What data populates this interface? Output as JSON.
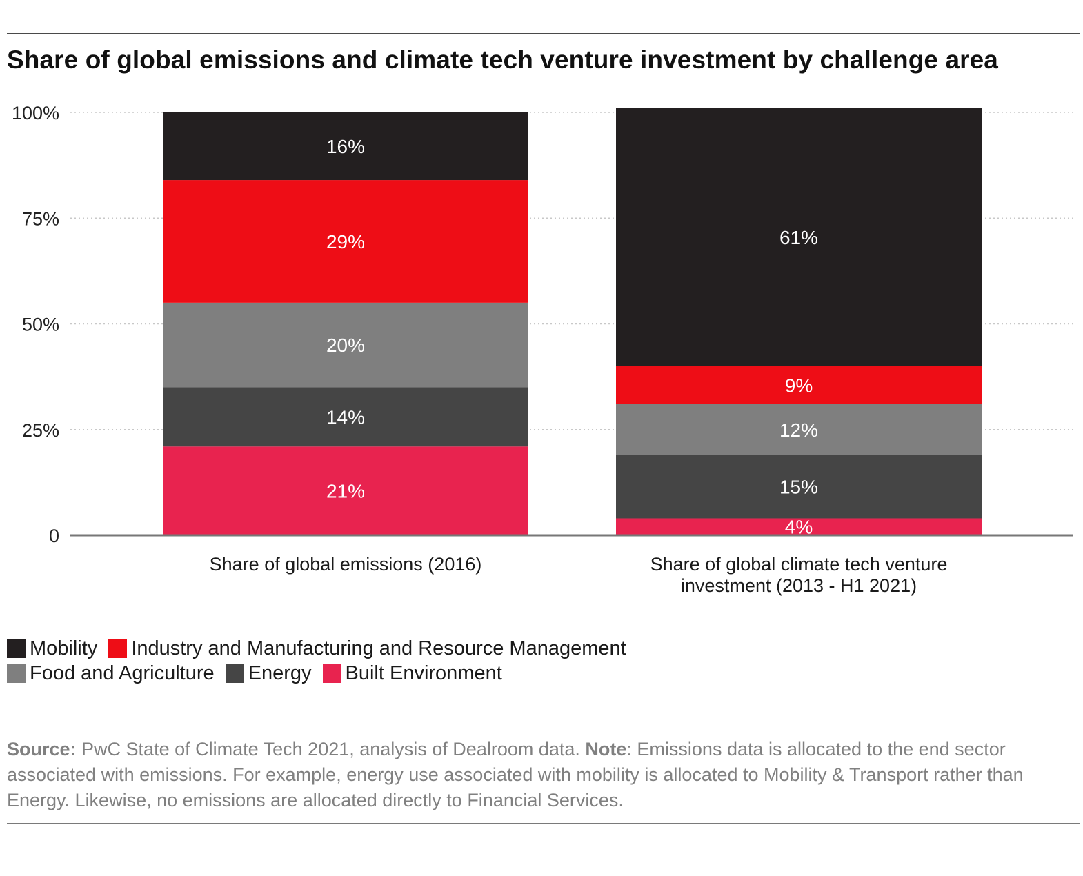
{
  "chart_data": {
    "type": "bar",
    "stacked": true,
    "title": "Share of global emissions and climate tech venture investment by challenge area",
    "categories": [
      [
        "Share of global emissions (2016)"
      ],
      [
        "Share of global climate tech venture",
        "investment (2013 - H1 2021)"
      ]
    ],
    "series": [
      {
        "name": "Built Environment",
        "color": "#e8234f",
        "values": [
          21,
          4
        ],
        "labels": [
          "21%",
          "4%"
        ]
      },
      {
        "name": "Energy",
        "color": "#454545",
        "values": [
          14,
          15
        ],
        "labels": [
          "14%",
          "15%"
        ]
      },
      {
        "name": "Food and Agriculture",
        "color": "#7f7f7f",
        "values": [
          20,
          12
        ],
        "labels": [
          "20%",
          "12%"
        ]
      },
      {
        "name": "Industry and Manufacturing and Resource Management",
        "color": "#ee0d16",
        "values": [
          29,
          9
        ],
        "labels": [
          "29%",
          "9%"
        ]
      },
      {
        "name": "Mobility",
        "color": "#231f20",
        "values": [
          16,
          61
        ],
        "labels": [
          "16%",
          "61%"
        ]
      }
    ],
    "ylim": [
      0,
      100
    ],
    "yticks": [
      {
        "value": 0,
        "label": "0"
      },
      {
        "value": 25,
        "label": "25%"
      },
      {
        "value": 50,
        "label": "50%"
      },
      {
        "value": 75,
        "label": "75%"
      },
      {
        "value": 100,
        "label": "100%"
      }
    ],
    "grid": true,
    "legend_position": "bottom-left"
  },
  "legend": {
    "rows": [
      [
        {
          "label": "Mobility",
          "color": "#231f20"
        },
        {
          "label": "Industry and Manufacturing and Resource Management",
          "color": "#ee0d16"
        }
      ],
      [
        {
          "label": "Food and Agriculture",
          "color": "#7f7f7f"
        },
        {
          "label": "Energy",
          "color": "#454545"
        },
        {
          "label": "Built Environment",
          "color": "#e8234f"
        }
      ]
    ]
  },
  "source": {
    "source_label": "Source:",
    "source_text": " PwC State of Climate Tech 2021, analysis of Dealroom data.  ",
    "note_label": "Note",
    "note_text": ": Emissions data is allocated to the end sector associated with emissions. For example, energy use associated with mobility is allocated to Mobility & Transport rather than Energy. Likewise, no emissions are allocated directly to Financial Services."
  }
}
